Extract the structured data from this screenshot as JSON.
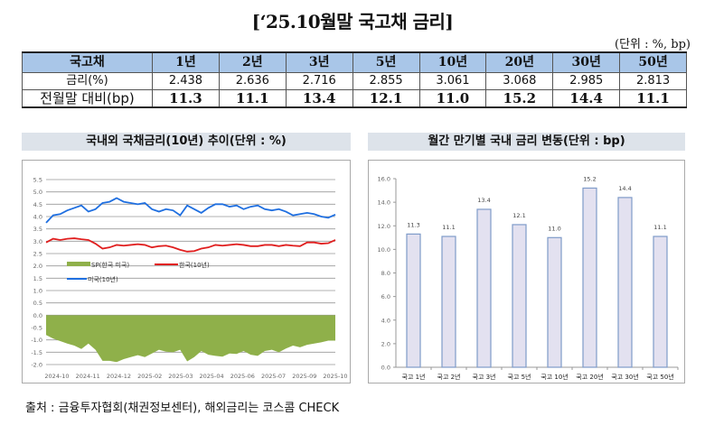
{
  "title": "[‘25.10월말 국고채 금리]",
  "unit": "(단위 : %, bp)",
  "table": {
    "headers": [
      "국고채",
      "1년",
      "2년",
      "3년",
      "5년",
      "10년",
      "20년",
      "30년",
      "50년"
    ],
    "rows": [
      [
        "금리(%)",
        "2.438",
        "2.636",
        "2.716",
        "2.855",
        "3.061",
        "3.068",
        "2.985",
        "2.813"
      ],
      [
        "전월말 대비(bp)",
        "11.3",
        "11.1",
        "13.4",
        "12.1",
        "11.0",
        "15.2",
        "14.4",
        "11.1"
      ]
    ]
  },
  "chart_data": [
    {
      "type": "line",
      "title": "국내외 국채금리(10년) 추이(단위 : %)",
      "x_tick_labels": [
        "2024-10",
        "2024-11",
        "2024-12",
        "2025-02",
        "2025-03",
        "2025-04",
        "2025-06",
        "2025-07",
        "2025-09",
        "2025-10"
      ],
      "ylim": [
        -2.0,
        5.5
      ],
      "y_ticks": [
        "5.5",
        "5.0",
        "4.5",
        "4.0",
        "3.5",
        "3.0",
        "2.5",
        "2.0",
        "1.5",
        "1.0",
        "0.5",
        "0.0",
        "-0.5",
        "-1.0",
        "-1.5",
        "-2.0"
      ],
      "grid": true,
      "legend": [
        "SP(한국 미국)",
        "한국(10년)",
        "미국(10년)"
      ],
      "series": [
        {
          "name": "미국(10년)",
          "color": "#1f6fe0",
          "values": [
            3.75,
            4.05,
            4.1,
            4.25,
            4.35,
            4.45,
            4.2,
            4.3,
            4.55,
            4.6,
            4.75,
            4.6,
            4.55,
            4.5,
            4.55,
            4.3,
            4.2,
            4.3,
            4.25,
            4.05,
            4.45,
            4.3,
            4.15,
            4.35,
            4.5,
            4.5,
            4.4,
            4.45,
            4.3,
            4.4,
            4.45,
            4.3,
            4.25,
            4.3,
            4.2,
            4.05,
            4.1,
            4.15,
            4.1,
            4.0,
            3.95,
            4.08
          ]
        },
        {
          "name": "한국(10년)",
          "color": "#e01e1e",
          "values": [
            2.95,
            3.1,
            3.05,
            3.1,
            3.12,
            3.08,
            3.05,
            2.9,
            2.7,
            2.75,
            2.85,
            2.82,
            2.85,
            2.88,
            2.85,
            2.75,
            2.8,
            2.82,
            2.75,
            2.65,
            2.58,
            2.6,
            2.7,
            2.75,
            2.85,
            2.82,
            2.85,
            2.88,
            2.85,
            2.8,
            2.8,
            2.85,
            2.85,
            2.8,
            2.85,
            2.82,
            2.8,
            2.95,
            2.95,
            2.9,
            2.92,
            3.05
          ]
        },
        {
          "name": "SP(한국 미국)",
          "color": "#8fb04a",
          "type": "area"
        }
      ]
    },
    {
      "type": "bar",
      "title": "월간 만기별 국내 금리 변동(단위 : bp)",
      "categories": [
        "국고 1년",
        "국고 2년",
        "국고 3년",
        "국고 5년",
        "국고 10년",
        "국고 20년",
        "국고 30년",
        "국고 50년"
      ],
      "values": [
        11.3,
        11.1,
        13.4,
        12.1,
        11.0,
        15.2,
        14.4,
        11.1
      ],
      "data_labels": [
        "11.3",
        "11.1",
        "13.4",
        "12.1",
        "11.0",
        "15.2",
        "14.4",
        "11.1"
      ],
      "ylim": [
        0,
        16
      ],
      "y_ticks": [
        "16.0",
        "14.0",
        "12.0",
        "10.0",
        "8.0",
        "6.0",
        "4.0",
        "2.0",
        "0.0"
      ],
      "bar_color": "#e3e1f0",
      "bar_border": "#7f9bc9"
    }
  ],
  "source": "출처 : 금융투자협회(채권정보센터), 해외금리는 코스콤 CHECK"
}
